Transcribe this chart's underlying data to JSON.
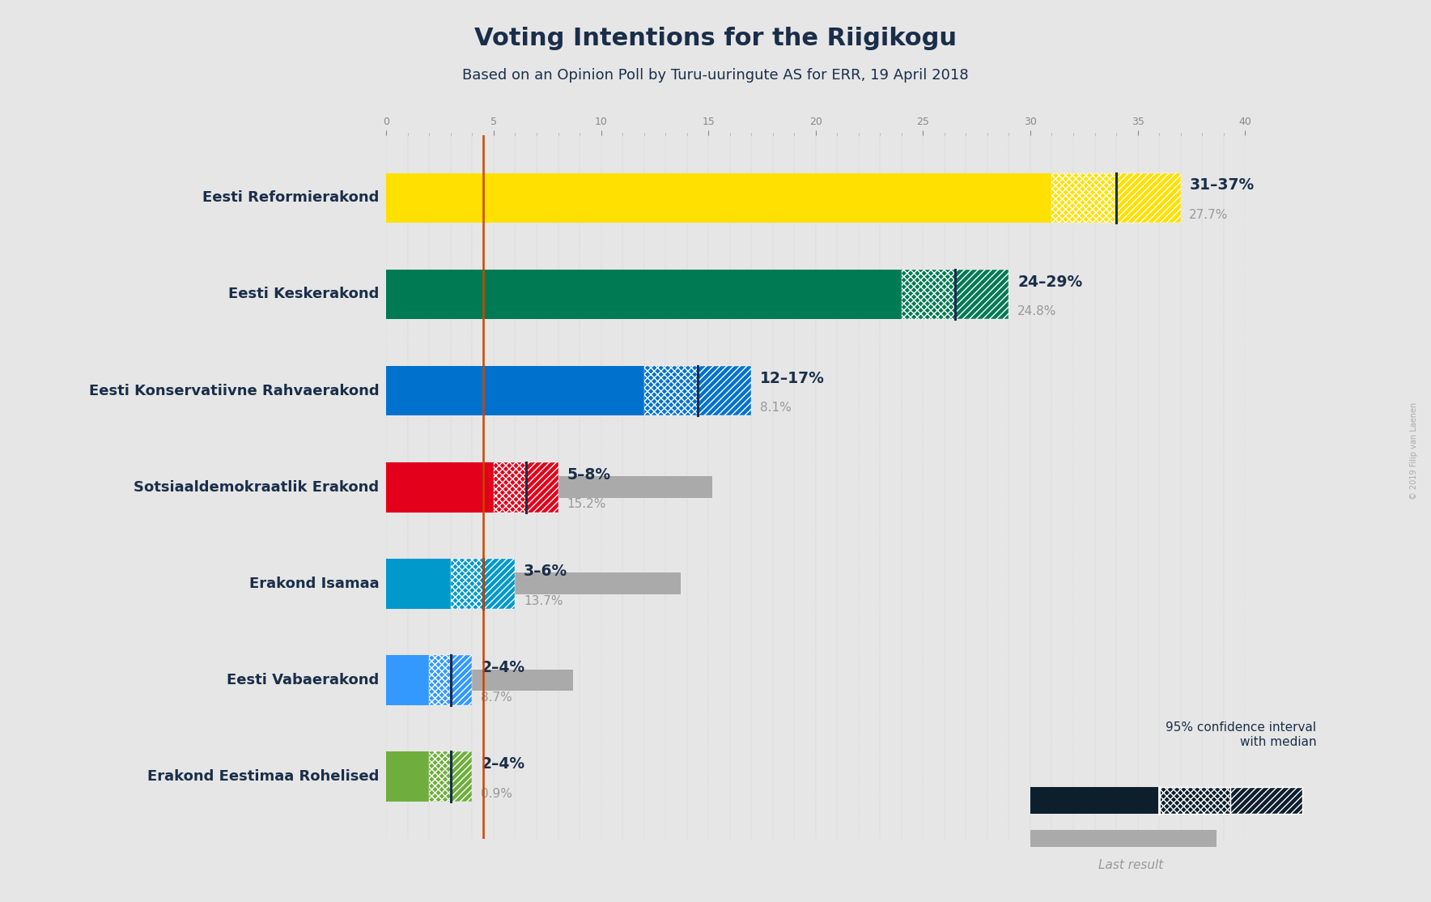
{
  "title": "Voting Intentions for the Riigikogu",
  "subtitle": "Based on an Opinion Poll by Turu-uuringute AS for ERR, 19 April 2018",
  "copyright": "© 2019 Filip van Laenen",
  "background_color": "#e6e6e6",
  "parties": [
    "Eesti Reformierakond",
    "Eesti Keskerakond",
    "Eesti Konservatiivne Rahvaerakond",
    "Sotsiaaldemokraatlik Erakond",
    "Erakond Isamaa",
    "Eesti Vabaerakond",
    "Erakond Eestimaa Rohelised"
  ],
  "ci_low": [
    31,
    24,
    12,
    5,
    3,
    2,
    2
  ],
  "ci_high": [
    37,
    29,
    17,
    8,
    6,
    4,
    4
  ],
  "median": [
    34,
    26.5,
    14.5,
    6.5,
    4.5,
    3.0,
    3.0
  ],
  "last_result": [
    27.7,
    24.8,
    8.1,
    15.2,
    13.7,
    8.7,
    0.9
  ],
  "ci_labels": [
    "31–37%",
    "24–29%",
    "12–17%",
    "5–8%",
    "3–6%",
    "2–4%",
    "2–4%"
  ],
  "last_labels": [
    "27.7%",
    "24.8%",
    "8.1%",
    "15.2%",
    "13.7%",
    "8.7%",
    "0.9%"
  ],
  "bar_colors": [
    "#FFE000",
    "#007A53",
    "#0072CE",
    "#E2001A",
    "#0099CC",
    "#3399FF",
    "#6FAE3C"
  ],
  "median_line_color": "#cc4400",
  "xlim": [
    0,
    40
  ],
  "title_color": "#1a2e4a",
  "last_result_text_color": "#999999",
  "navy": "#0d1f2d"
}
